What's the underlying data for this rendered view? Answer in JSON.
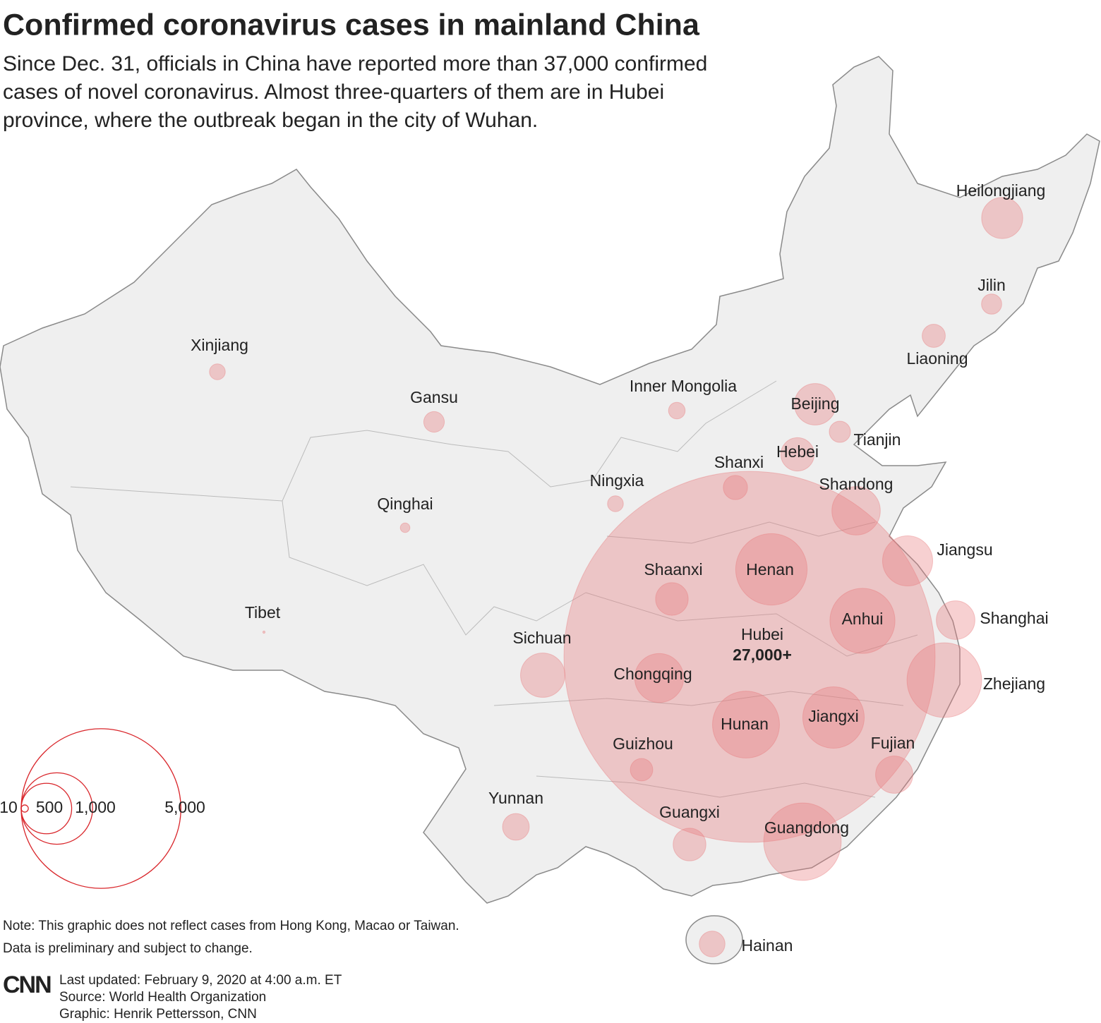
{
  "header": {
    "title": "Confirmed coronavirus cases in mainland China",
    "subtitle": [
      "Since Dec. 31, officials in China have reported more than 37,000 confirmed",
      "cases of novel coronavirus. Almost three-quarters of them are in Hubei",
      "province, where the outbreak began in the city of Wuhan."
    ]
  },
  "chart_data": {
    "type": "bubble-map",
    "categories": [
      "Heilongjiang",
      "Jilin",
      "Liaoning",
      "Inner Mongolia",
      "Beijing",
      "Tianjin",
      "Hebei",
      "Shanxi",
      "Shandong",
      "Jiangsu",
      "Shanghai",
      "Zhejiang",
      "Anhui",
      "Henan",
      "Hubei",
      "Jiangxi",
      "Hunan",
      "Fujian",
      "Guangdong",
      "Guangxi",
      "Hainan",
      "Guizhou",
      "Chongqing",
      "Sichuan",
      "Yunnan",
      "Shaanxi",
      "Ningxia",
      "Gansu",
      "Qinghai",
      "Xinjiang",
      "Tibet"
    ],
    "values": [
      331,
      80,
      105,
      54,
      337,
      88,
      218,
      115,
      459,
      492,
      292,
      1092,
      830,
      1000,
      27000,
      740,
      879,
      272,
      1177,
      210,
      130,
      99,
      468,
      386,
      140,
      208,
      49,
      83,
      18,
      49,
      1
    ],
    "value_labels": [
      null,
      null,
      null,
      null,
      null,
      null,
      null,
      null,
      null,
      null,
      null,
      null,
      null,
      null,
      "27,000+",
      null,
      null,
      null,
      null,
      null,
      null,
      null,
      null,
      null,
      null,
      null,
      null,
      null,
      null,
      null,
      null
    ],
    "color": "#e8787a",
    "size_legend": [
      10,
      500,
      {
        "value": 1000,
        "label": "1,000"
      },
      {
        "value": 5000,
        "label": "5,000"
      }
    ]
  },
  "footer": {
    "note": [
      "Note: This graphic does not reflect cases from Hong Kong, Macao or Taiwan.",
      "Data is preliminary and subject to change."
    ],
    "logo": "CNN",
    "credits": [
      "Last updated: February 9, 2020 at 4:00 a.m. ET",
      "Source: World Health Organization",
      "Graphic: Henrik Pettersson, CNN"
    ]
  }
}
